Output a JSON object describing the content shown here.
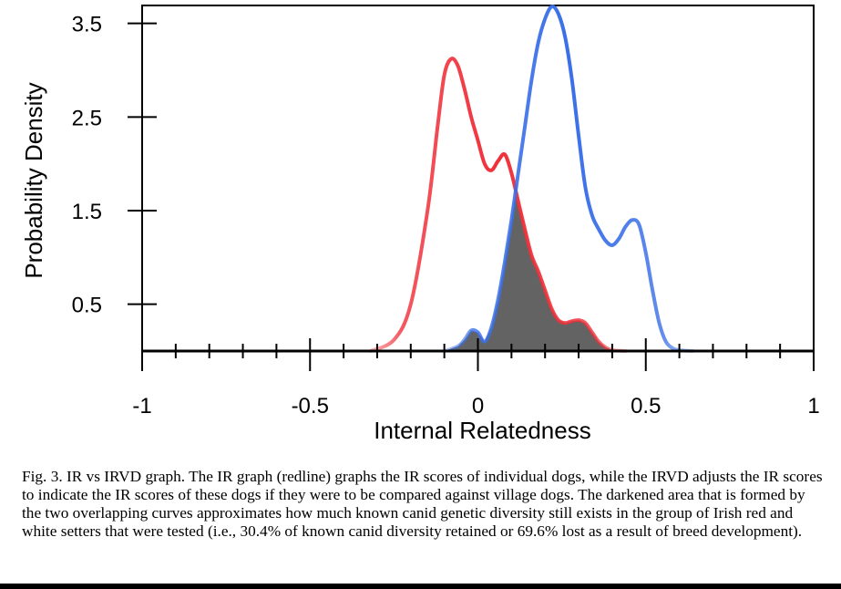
{
  "chart_data": {
    "type": "area",
    "title": "",
    "xlabel": "Internal Relatedness",
    "ylabel": "Probability Density",
    "xlim": [
      -1.0,
      1.0
    ],
    "ylim": [
      0.0,
      3.7
    ],
    "x_ticks": [
      {
        "value": -1,
        "label": "-1"
      },
      {
        "value": -0.5,
        "label": "-0.5"
      },
      {
        "value": 0,
        "label": "0"
      },
      {
        "value": 0.5,
        "label": "0.5"
      },
      {
        "value": 1,
        "label": "1"
      }
    ],
    "y_ticks": [
      {
        "value": 0.5,
        "label": "0.5"
      },
      {
        "value": 1.5,
        "label": "1.5"
      },
      {
        "value": 2.5,
        "label": "2.5"
      },
      {
        "value": 3.5,
        "label": "3.5"
      }
    ],
    "series": [
      {
        "color": "#f0303a",
        "x": [
          -0.32,
          -0.25,
          -0.2,
          -0.15,
          -0.12,
          -0.1,
          -0.08,
          -0.06,
          -0.04,
          -0.02,
          0.0,
          0.02,
          0.04,
          0.06,
          0.08,
          0.1,
          0.12,
          0.14,
          0.16,
          0.18,
          0.2,
          0.22,
          0.24,
          0.26,
          0.28,
          0.3,
          0.32,
          0.34,
          0.36,
          0.38,
          0.4,
          0.44
        ],
        "y": [
          0.0,
          0.12,
          0.5,
          1.5,
          2.4,
          2.95,
          3.12,
          3.05,
          2.8,
          2.5,
          2.25,
          2.0,
          1.93,
          2.03,
          2.1,
          1.9,
          1.6,
          1.3,
          1.02,
          0.85,
          0.65,
          0.45,
          0.33,
          0.3,
          0.32,
          0.33,
          0.3,
          0.2,
          0.1,
          0.04,
          0.01,
          0.0
        ]
      },
      {
        "color": "#3a6fe8",
        "x": [
          -0.1,
          -0.06,
          -0.04,
          -0.02,
          0.0,
          0.02,
          0.04,
          0.06,
          0.08,
          0.1,
          0.12,
          0.14,
          0.16,
          0.18,
          0.2,
          0.22,
          0.24,
          0.26,
          0.28,
          0.3,
          0.32,
          0.34,
          0.36,
          0.38,
          0.4,
          0.42,
          0.44,
          0.46,
          0.48,
          0.5,
          0.52,
          0.54,
          0.56,
          0.58,
          0.6,
          0.64
        ],
        "y": [
          0.0,
          0.05,
          0.12,
          0.22,
          0.2,
          0.1,
          0.25,
          0.55,
          0.95,
          1.4,
          1.9,
          2.4,
          2.9,
          3.3,
          3.55,
          3.68,
          3.6,
          3.35,
          2.9,
          2.3,
          1.75,
          1.45,
          1.3,
          1.18,
          1.13,
          1.2,
          1.33,
          1.4,
          1.35,
          1.05,
          0.65,
          0.3,
          0.1,
          0.03,
          0.01,
          0.0
        ]
      }
    ],
    "overlap_fill_color": "#636363",
    "legend": "none",
    "grid": false
  },
  "caption": {
    "text": "Fig. 3. IR vs IRVD graph. The IR graph (redline) graphs the IR scores of individual dogs, while the IRVD adjusts the IR scores to indicate the IR scores of these dogs if they were to be compared against village dogs.  The darkened area that is formed by the two overlapping curves approximates how much known canid genetic diversity still exists in the group of Irish red and white setters that were tested (i.e., 30.4% of known canid diversity retained or 69.6% lost as a result of breed development)."
  }
}
